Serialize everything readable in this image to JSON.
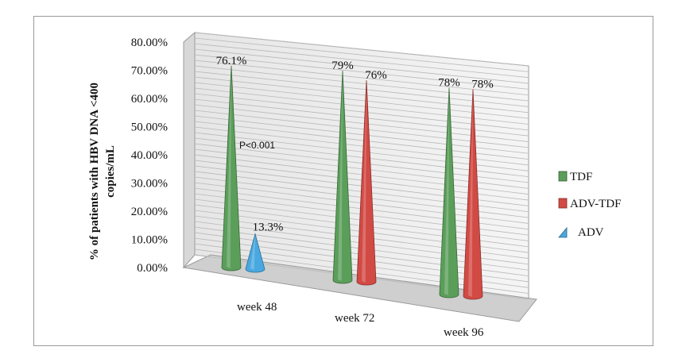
{
  "chart_data": {
    "type": "bar",
    "style": "3d-cone",
    "categories": [
      "week 48",
      "week 72",
      "week 96"
    ],
    "series": [
      {
        "name": "TDF",
        "color": "#5a9e5a",
        "values": [
          76.1,
          79,
          78
        ],
        "labels": [
          "76.1%",
          "79%",
          "78%"
        ]
      },
      {
        "name": "ADV-TDF",
        "color": "#d24a44",
        "values": [
          null,
          76,
          78
        ],
        "labels": [
          "",
          "76%",
          "78%"
        ]
      },
      {
        "name": "ADV",
        "color": "#4aa8e0",
        "values": [
          13.3,
          null,
          null
        ],
        "labels": [
          "13.3%",
          "",
          ""
        ]
      }
    ],
    "ylabel_line1": "% of patients with HBV DNA <400",
    "ylabel_line2": "copies/mL",
    "ylim": [
      0,
      80
    ],
    "yticks": [
      "0.00%",
      "10.00%",
      "20.00%",
      "30.00%",
      "40.00%",
      "50.00%",
      "60.00%",
      "70.00%",
      "80.00%"
    ],
    "annotations": [
      "P<0.001"
    ],
    "legend_position": "right",
    "grid": true
  }
}
